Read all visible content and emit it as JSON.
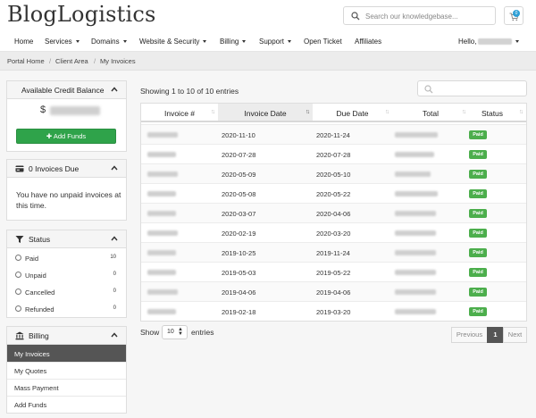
{
  "header": {
    "logo_text": "BlogLogistics",
    "search_placeholder": "Search our knowledgebase...",
    "cart_count": "0"
  },
  "nav": {
    "items": [
      {
        "label": "Home"
      },
      {
        "label": "Services"
      },
      {
        "label": "Domains"
      },
      {
        "label": "Website & Security"
      },
      {
        "label": "Billing"
      },
      {
        "label": "Support"
      },
      {
        "label": "Open Ticket"
      },
      {
        "label": "Affiliates"
      }
    ],
    "greeting": "Hello,"
  },
  "breadcrumb": [
    "Portal Home",
    "Client Area",
    "My Invoices"
  ],
  "sidebar": {
    "credit": {
      "title": "Available Credit Balance",
      "currency": "$",
      "add_funds": "Add Funds"
    },
    "invoices_due": {
      "title": "0 Invoices Due",
      "message": "You have no unpaid invoices at this time."
    },
    "status": {
      "title": "Status",
      "items": [
        {
          "label": "Paid",
          "count": "10"
        },
        {
          "label": "Unpaid",
          "count": "0"
        },
        {
          "label": "Cancelled",
          "count": "0"
        },
        {
          "label": "Refunded",
          "count": "0"
        }
      ]
    },
    "billing": {
      "title": "Billing",
      "items": [
        {
          "label": "My Invoices"
        },
        {
          "label": "My Quotes"
        },
        {
          "label": "Mass Payment"
        },
        {
          "label": "Add Funds"
        }
      ]
    }
  },
  "table": {
    "info": "Showing 1 to 10 of 10 entries",
    "columns": [
      "Invoice #",
      "Invoice Date",
      "Due Date",
      "Total",
      "Status"
    ],
    "rows": [
      {
        "invoice_date": "2020-11-10",
        "due_date": "2020-11-24",
        "status": "Paid"
      },
      {
        "invoice_date": "2020-07-28",
        "due_date": "2020-07-28",
        "status": "Paid"
      },
      {
        "invoice_date": "2020-05-09",
        "due_date": "2020-05-10",
        "status": "Paid"
      },
      {
        "invoice_date": "2020-05-08",
        "due_date": "2020-05-22",
        "status": "Paid"
      },
      {
        "invoice_date": "2020-03-07",
        "due_date": "2020-04-06",
        "status": "Paid"
      },
      {
        "invoice_date": "2020-02-19",
        "due_date": "2020-03-20",
        "status": "Paid"
      },
      {
        "invoice_date": "2019-10-25",
        "due_date": "2019-11-24",
        "status": "Paid"
      },
      {
        "invoice_date": "2019-05-03",
        "due_date": "2019-05-22",
        "status": "Paid"
      },
      {
        "invoice_date": "2019-04-06",
        "due_date": "2019-04-06",
        "status": "Paid"
      },
      {
        "invoice_date": "2019-02-18",
        "due_date": "2019-03-20",
        "status": "Paid"
      }
    ],
    "length_label_before": "Show",
    "length_value": "10",
    "length_label_after": "entries",
    "pagination": {
      "previous": "Previous",
      "current": "1",
      "next": "Next"
    }
  },
  "colors": {
    "accent": "#2e9fd6",
    "success": "#2fa34a",
    "paid_badge": "#4cae4c",
    "active_menu": "#555555"
  },
  "icons": {
    "search": "search-icon",
    "cart": "cart-icon",
    "credit_card": "credit-card-icon",
    "filter": "filter-icon",
    "bank": "bank-icon",
    "chevron": "chevron-up-icon"
  }
}
